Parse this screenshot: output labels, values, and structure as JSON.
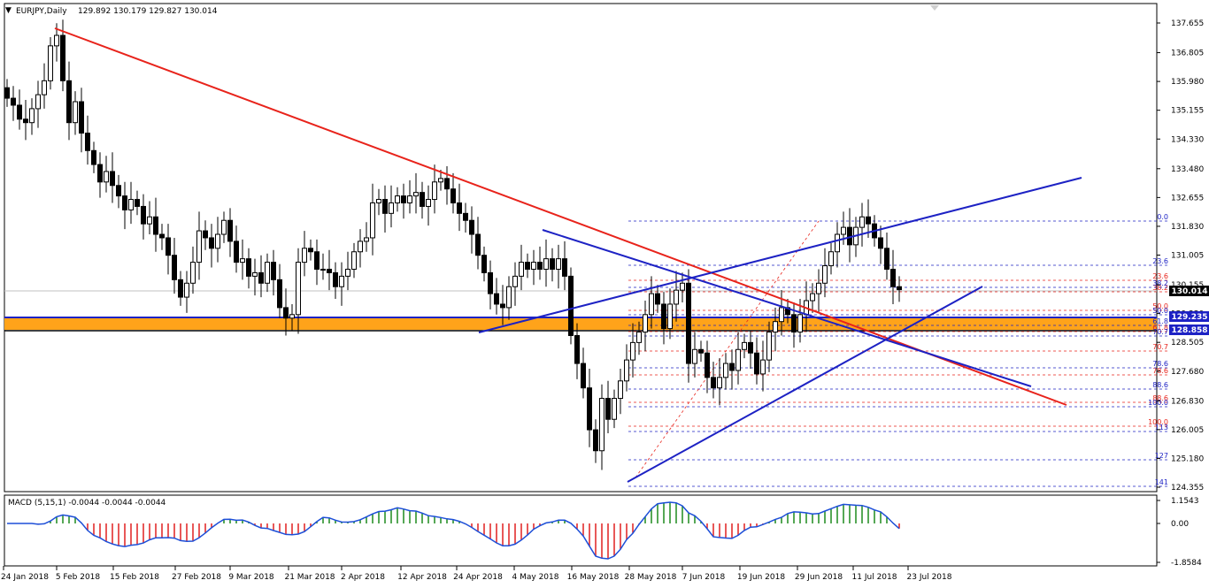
{
  "header": {
    "symbol": "EURJPY,Daily",
    "ohlc": "129.892 130.179 129.827 130.014"
  },
  "macd_label": "MACD (5,15,1) -0.0044 -0.0044 -0.0044",
  "price_tags": {
    "current": "130.014",
    "upper": "129.235",
    "lower": "128.858"
  },
  "colors": {
    "bull_candle": "#ffffff",
    "bear_candle": "#000000",
    "trend_red": "#e8231b",
    "trend_blue": "#1d22c4",
    "support_zone": "#ffa31a",
    "macd_pos": "#1e8b1e",
    "macd_neg": "#e02020",
    "signal_line": "#1d4fd8"
  },
  "chart_data": {
    "type": "candlestick",
    "title": "EURJPY,Daily",
    "ylim": [
      124.355,
      137.655
    ],
    "y_ticks": [
      "137.655",
      "136.805",
      "135.980",
      "135.155",
      "134.330",
      "133.480",
      "132.655",
      "131.830",
      "131.005",
      "130.155",
      "129.330",
      "128.505",
      "127.680",
      "126.830",
      "126.005",
      "125.180",
      "124.355"
    ],
    "x_ticks": [
      "24 Jan 2018",
      "5 Feb 2018",
      "15 Feb 2018",
      "27 Feb 2018",
      "9 Mar 2018",
      "21 Mar 2018",
      "2 Apr 2018",
      "12 Apr 2018",
      "24 Apr 2018",
      "4 May 2018",
      "16 May 2018",
      "28 May 2018",
      "7 Jun 2018",
      "19 Jun 2018",
      "29 Jun 2018",
      "11 Jul 2018",
      "23 Jul 2018"
    ],
    "closes": [
      135.5,
      135.3,
      134.9,
      134.8,
      135.2,
      135.6,
      136.0,
      137.0,
      137.3,
      136.0,
      134.8,
      135.4,
      134.5,
      134.0,
      133.6,
      133.1,
      133.4,
      133.0,
      132.7,
      132.3,
      132.6,
      132.4,
      131.9,
      132.1,
      131.6,
      131.5,
      131.0,
      130.3,
      129.8,
      130.2,
      130.8,
      131.7,
      131.5,
      131.2,
      131.6,
      132.0,
      131.4,
      130.8,
      130.9,
      130.4,
      130.5,
      130.2,
      130.8,
      130.3,
      129.5,
      129.2,
      129.3,
      130.8,
      131.2,
      131.1,
      130.6,
      130.6,
      130.5,
      130.1,
      130.4,
      130.6,
      131.1,
      131.4,
      131.5,
      132.5,
      132.6,
      132.2,
      132.5,
      132.7,
      132.5,
      132.7,
      132.8,
      132.4,
      132.6,
      133.1,
      133.2,
      132.9,
      132.5,
      132.2,
      132.0,
      131.6,
      131.0,
      130.5,
      129.9,
      129.6,
      129.5,
      130.1,
      130.4,
      130.8,
      130.6,
      130.8,
      130.6,
      130.9,
      130.6,
      130.9,
      130.4,
      128.7,
      127.9,
      127.2,
      126.0,
      125.4,
      126.9,
      126.3,
      126.9,
      127.4,
      128.0,
      128.5,
      128.8,
      129.3,
      129.9,
      129.6,
      128.9,
      129.6,
      130.0,
      130.2,
      127.9,
      128.3,
      128.2,
      127.5,
      127.2,
      127.5,
      127.9,
      127.7,
      128.3,
      128.5,
      128.2,
      127.6,
      128.0,
      128.8,
      129.1,
      129.5,
      129.3,
      128.8,
      129.3,
      129.7,
      129.9,
      130.2,
      130.7,
      131.1,
      131.6,
      131.8,
      131.3,
      131.8,
      132.1,
      131.9,
      131.5,
      131.2,
      130.6,
      130.1,
      130.014
    ]
  },
  "fib_levels_red": [
    "23.6",
    "38.2",
    "50.0",
    "61.8",
    "70.7",
    "78.6",
    "88.6",
    "100.0"
  ],
  "fib_levels_blue": [
    "0.0",
    "23.6",
    "38.2",
    "50.0",
    "61.8",
    "70.7",
    "100.0",
    "113",
    "127",
    "141"
  ]
}
